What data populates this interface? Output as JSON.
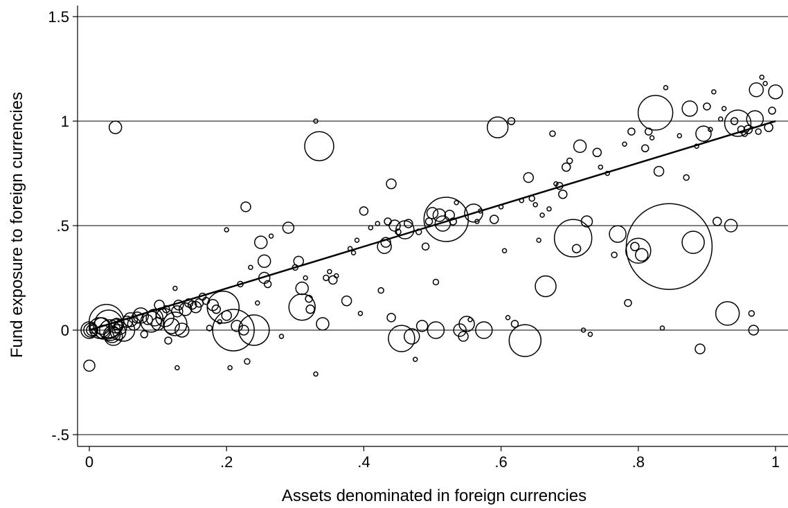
{
  "chart_data": {
    "type": "scatter",
    "title": "",
    "xlabel": "Assets denominated in foreign currencies",
    "ylabel": "Fund exposure to foreign currencies",
    "xlim": [
      -0.02,
      1.02
    ],
    "ylim": [
      -0.55,
      1.55
    ],
    "x_ticks": [
      0,
      0.2,
      0.4,
      0.6,
      0.8,
      1
    ],
    "x_tick_labels": [
      "0",
      ".2",
      ".4",
      ".6",
      ".8",
      "1"
    ],
    "y_ticks": [
      -0.5,
      0,
      0.5,
      1,
      1.5
    ],
    "y_tick_labels": [
      "-.5",
      "0",
      ".5",
      "1",
      "1.5"
    ],
    "grid": "horizontal",
    "legend": "none",
    "colors": {
      "marker": "#000000",
      "fit_line": "#000000",
      "grid": "#000000",
      "background": "#ffffff"
    },
    "fit_line": {
      "x": [
        0,
        1
      ],
      "y": [
        0,
        1
      ]
    },
    "marker_size_note": "marker area weighted by fund size (relative units)",
    "points": [
      {
        "x": 0.0,
        "y": 0.0,
        "s": 1.2
      },
      {
        "x": 0.002,
        "y": 0.0,
        "s": 1.0
      },
      {
        "x": 0.004,
        "y": 0.0,
        "s": 0.8
      },
      {
        "x": 0.006,
        "y": 0.005,
        "s": 0.6
      },
      {
        "x": 0.0,
        "y": -0.17,
        "s": 0.8
      },
      {
        "x": 0.015,
        "y": 0.01,
        "s": 1.5
      },
      {
        "x": 0.018,
        "y": 0.02,
        "s": 1.2
      },
      {
        "x": 0.02,
        "y": -0.01,
        "s": 1.0
      },
      {
        "x": 0.025,
        "y": 0.04,
        "s": 2.5
      },
      {
        "x": 0.028,
        "y": 0.03,
        "s": 2.0
      },
      {
        "x": 0.03,
        "y": 0.0,
        "s": 1.5
      },
      {
        "x": 0.033,
        "y": -0.02,
        "s": 1.2
      },
      {
        "x": 0.035,
        "y": -0.03,
        "s": 1.3
      },
      {
        "x": 0.038,
        "y": 0.02,
        "s": 1.0
      },
      {
        "x": 0.04,
        "y": 0.03,
        "s": 0.8
      },
      {
        "x": 0.042,
        "y": -0.01,
        "s": 1.1
      },
      {
        "x": 0.045,
        "y": 0.01,
        "s": 0.9
      },
      {
        "x": 0.05,
        "y": 0.0,
        "s": 1.6
      },
      {
        "x": 0.038,
        "y": 0.97,
        "s": 0.9
      },
      {
        "x": 0.055,
        "y": 0.04,
        "s": 0.8
      },
      {
        "x": 0.06,
        "y": 0.05,
        "s": 1.0
      },
      {
        "x": 0.065,
        "y": 0.03,
        "s": 0.9
      },
      {
        "x": 0.07,
        "y": 0.06,
        "s": 0.8
      },
      {
        "x": 0.075,
        "y": 0.07,
        "s": 1.1
      },
      {
        "x": 0.08,
        "y": -0.02,
        "s": 0.5
      },
      {
        "x": 0.085,
        "y": 0.05,
        "s": 0.7
      },
      {
        "x": 0.09,
        "y": 0.04,
        "s": 1.5
      },
      {
        "x": 0.095,
        "y": 0.06,
        "s": 1.2
      },
      {
        "x": 0.1,
        "y": 0.03,
        "s": 0.9
      },
      {
        "x": 0.102,
        "y": 0.12,
        "s": 0.7
      },
      {
        "x": 0.105,
        "y": 0.08,
        "s": 0.8
      },
      {
        "x": 0.11,
        "y": 0.06,
        "s": 1.3
      },
      {
        "x": 0.112,
        "y": 0.1,
        "s": 0.5
      },
      {
        "x": 0.115,
        "y": -0.05,
        "s": 0.5
      },
      {
        "x": 0.12,
        "y": 0.02,
        "s": 1.1
      },
      {
        "x": 0.125,
        "y": 0.03,
        "s": 1.7
      },
      {
        "x": 0.128,
        "y": 0.09,
        "s": 0.8
      },
      {
        "x": 0.13,
        "y": 0.12,
        "s": 0.7
      },
      {
        "x": 0.135,
        "y": 0.0,
        "s": 1.0
      },
      {
        "x": 0.14,
        "y": 0.1,
        "s": 0.9
      },
      {
        "x": 0.145,
        "y": 0.13,
        "s": 0.6
      },
      {
        "x": 0.125,
        "y": 0.2,
        "s": 0.3
      },
      {
        "x": 0.128,
        "y": -0.18,
        "s": 0.3
      },
      {
        "x": 0.15,
        "y": 0.12,
        "s": 0.6
      },
      {
        "x": 0.155,
        "y": 0.11,
        "s": 0.8
      },
      {
        "x": 0.16,
        "y": 0.13,
        "s": 0.6
      },
      {
        "x": 0.165,
        "y": 0.16,
        "s": 0.5
      },
      {
        "x": 0.17,
        "y": 0.14,
        "s": 0.5
      },
      {
        "x": 0.175,
        "y": 0.01,
        "s": 0.4
      },
      {
        "x": 0.18,
        "y": 0.12,
        "s": 0.8
      },
      {
        "x": 0.185,
        "y": 0.1,
        "s": 0.6
      },
      {
        "x": 0.19,
        "y": 0.04,
        "s": 0.3
      },
      {
        "x": 0.195,
        "y": 0.11,
        "s": 2.3
      },
      {
        "x": 0.2,
        "y": 0.07,
        "s": 0.7
      },
      {
        "x": 0.2,
        "y": 0.48,
        "s": 0.3
      },
      {
        "x": 0.205,
        "y": -0.18,
        "s": 0.3
      },
      {
        "x": 0.21,
        "y": 0.0,
        "s": 3.0
      },
      {
        "x": 0.215,
        "y": 0.02,
        "s": 0.8
      },
      {
        "x": 0.22,
        "y": 0.22,
        "s": 0.4
      },
      {
        "x": 0.225,
        "y": 0.0,
        "s": 0.7
      },
      {
        "x": 0.228,
        "y": 0.59,
        "s": 0.7
      },
      {
        "x": 0.23,
        "y": -0.15,
        "s": 0.4
      },
      {
        "x": 0.235,
        "y": 0.3,
        "s": 0.3
      },
      {
        "x": 0.24,
        "y": 0.0,
        "s": 2.2
      },
      {
        "x": 0.245,
        "y": 0.13,
        "s": 0.3
      },
      {
        "x": 0.25,
        "y": 0.42,
        "s": 0.9
      },
      {
        "x": 0.255,
        "y": 0.33,
        "s": 0.9
      },
      {
        "x": 0.255,
        "y": 0.25,
        "s": 0.8
      },
      {
        "x": 0.26,
        "y": 0.22,
        "s": 0.5
      },
      {
        "x": 0.265,
        "y": 0.45,
        "s": 0.3
      },
      {
        "x": 0.28,
        "y": -0.03,
        "s": 0.3
      },
      {
        "x": 0.29,
        "y": 0.49,
        "s": 0.8
      },
      {
        "x": 0.3,
        "y": 0.3,
        "s": 0.4
      },
      {
        "x": 0.305,
        "y": 0.33,
        "s": 0.7
      },
      {
        "x": 0.31,
        "y": 0.2,
        "s": 0.9
      },
      {
        "x": 0.31,
        "y": 0.11,
        "s": 1.9
      },
      {
        "x": 0.315,
        "y": 0.25,
        "s": 0.3
      },
      {
        "x": 0.32,
        "y": 0.15,
        "s": 0.5
      },
      {
        "x": 0.322,
        "y": 0.1,
        "s": 0.6
      },
      {
        "x": 0.33,
        "y": 1.0,
        "s": 0.3
      },
      {
        "x": 0.33,
        "y": -0.21,
        "s": 0.3
      },
      {
        "x": 0.335,
        "y": 0.88,
        "s": 2.1
      },
      {
        "x": 0.34,
        "y": 0.03,
        "s": 0.9
      },
      {
        "x": 0.345,
        "y": 0.25,
        "s": 0.4
      },
      {
        "x": 0.35,
        "y": 0.28,
        "s": 0.3
      },
      {
        "x": 0.355,
        "y": 0.24,
        "s": 0.6
      },
      {
        "x": 0.36,
        "y": 0.26,
        "s": 0.3
      },
      {
        "x": 0.375,
        "y": 0.14,
        "s": 0.7
      },
      {
        "x": 0.38,
        "y": 0.39,
        "s": 0.3
      },
      {
        "x": 0.385,
        "y": 0.37,
        "s": 0.3
      },
      {
        "x": 0.39,
        "y": 0.43,
        "s": 0.3
      },
      {
        "x": 0.395,
        "y": 0.08,
        "s": 0.3
      },
      {
        "x": 0.4,
        "y": 0.57,
        "s": 0.6
      },
      {
        "x": 0.41,
        "y": 0.49,
        "s": 0.3
      },
      {
        "x": 0.42,
        "y": 0.51,
        "s": 0.3
      },
      {
        "x": 0.425,
        "y": 0.19,
        "s": 0.4
      },
      {
        "x": 0.43,
        "y": 0.4,
        "s": 1.0
      },
      {
        "x": 0.432,
        "y": 0.42,
        "s": 0.7
      },
      {
        "x": 0.435,
        "y": 0.52,
        "s": 0.5
      },
      {
        "x": 0.44,
        "y": 0.7,
        "s": 0.7
      },
      {
        "x": 0.44,
        "y": 0.06,
        "s": 0.6
      },
      {
        "x": 0.445,
        "y": 0.5,
        "s": 0.8
      },
      {
        "x": 0.45,
        "y": 0.47,
        "s": 0.4
      },
      {
        "x": 0.455,
        "y": -0.04,
        "s": 1.9
      },
      {
        "x": 0.46,
        "y": 0.48,
        "s": 1.3
      },
      {
        "x": 0.465,
        "y": 0.51,
        "s": 0.6
      },
      {
        "x": 0.47,
        "y": -0.03,
        "s": 1.1
      },
      {
        "x": 0.475,
        "y": -0.14,
        "s": 0.3
      },
      {
        "x": 0.48,
        "y": 0.47,
        "s": 0.4
      },
      {
        "x": 0.485,
        "y": 0.02,
        "s": 0.8
      },
      {
        "x": 0.49,
        "y": 0.4,
        "s": 0.5
      },
      {
        "x": 0.495,
        "y": 0.52,
        "s": 0.5
      },
      {
        "x": 0.5,
        "y": 0.56,
        "s": 0.8
      },
      {
        "x": 0.505,
        "y": 0.0,
        "s": 1.2
      },
      {
        "x": 0.505,
        "y": 0.23,
        "s": 0.4
      },
      {
        "x": 0.51,
        "y": 0.55,
        "s": 0.9
      },
      {
        "x": 0.515,
        "y": 0.51,
        "s": 1.1
      },
      {
        "x": 0.52,
        "y": 0.53,
        "s": 3.2
      },
      {
        "x": 0.525,
        "y": 0.55,
        "s": 0.7
      },
      {
        "x": 0.53,
        "y": 0.52,
        "s": 0.5
      },
      {
        "x": 0.535,
        "y": 0.61,
        "s": 0.3
      },
      {
        "x": 0.54,
        "y": 0.0,
        "s": 0.9
      },
      {
        "x": 0.545,
        "y": -0.03,
        "s": 0.7
      },
      {
        "x": 0.55,
        "y": 0.03,
        "s": 1.1
      },
      {
        "x": 0.555,
        "y": 0.05,
        "s": 0.3
      },
      {
        "x": 0.56,
        "y": 0.56,
        "s": 1.3
      },
      {
        "x": 0.565,
        "y": 0.52,
        "s": 0.3
      },
      {
        "x": 0.57,
        "y": 0.57,
        "s": 0.3
      },
      {
        "x": 0.575,
        "y": 0.0,
        "s": 1.2
      },
      {
        "x": 0.59,
        "y": 0.53,
        "s": 0.6
      },
      {
        "x": 0.595,
        "y": 0.97,
        "s": 1.5
      },
      {
        "x": 0.6,
        "y": 0.59,
        "s": 0.3
      },
      {
        "x": 0.605,
        "y": 0.38,
        "s": 0.3
      },
      {
        "x": 0.61,
        "y": 0.06,
        "s": 0.3
      },
      {
        "x": 0.615,
        "y": 1.0,
        "s": 0.5
      },
      {
        "x": 0.62,
        "y": 0.03,
        "s": 0.5
      },
      {
        "x": 0.63,
        "y": 0.62,
        "s": 0.3
      },
      {
        "x": 0.635,
        "y": -0.05,
        "s": 2.3
      },
      {
        "x": 0.64,
        "y": 0.73,
        "s": 0.7
      },
      {
        "x": 0.645,
        "y": 0.63,
        "s": 0.4
      },
      {
        "x": 0.65,
        "y": 0.6,
        "s": 0.3
      },
      {
        "x": 0.655,
        "y": 0.43,
        "s": 0.3
      },
      {
        "x": 0.66,
        "y": 0.55,
        "s": 0.3
      },
      {
        "x": 0.665,
        "y": 0.21,
        "s": 1.5
      },
      {
        "x": 0.67,
        "y": 0.58,
        "s": 0.3
      },
      {
        "x": 0.675,
        "y": 0.94,
        "s": 0.4
      },
      {
        "x": 0.68,
        "y": 0.7,
        "s": 0.3
      },
      {
        "x": 0.685,
        "y": 0.69,
        "s": 0.5
      },
      {
        "x": 0.69,
        "y": 0.65,
        "s": 0.6
      },
      {
        "x": 0.695,
        "y": 0.78,
        "s": 0.6
      },
      {
        "x": 0.7,
        "y": 0.81,
        "s": 0.4
      },
      {
        "x": 0.705,
        "y": 0.44,
        "s": 2.7
      },
      {
        "x": 0.71,
        "y": 0.39,
        "s": 0.6
      },
      {
        "x": 0.715,
        "y": 0.88,
        "s": 0.9
      },
      {
        "x": 0.72,
        "y": 0.0,
        "s": 0.3
      },
      {
        "x": 0.725,
        "y": 0.52,
        "s": 0.8
      },
      {
        "x": 0.73,
        "y": -0.02,
        "s": 0.3
      },
      {
        "x": 0.74,
        "y": 0.85,
        "s": 0.6
      },
      {
        "x": 0.745,
        "y": 0.78,
        "s": 0.3
      },
      {
        "x": 0.755,
        "y": 0.75,
        "s": 0.3
      },
      {
        "x": 0.765,
        "y": 0.36,
        "s": 0.4
      },
      {
        "x": 0.77,
        "y": 0.46,
        "s": 1.2
      },
      {
        "x": 0.78,
        "y": 0.89,
        "s": 0.3
      },
      {
        "x": 0.785,
        "y": 0.13,
        "s": 0.5
      },
      {
        "x": 0.79,
        "y": 0.95,
        "s": 0.5
      },
      {
        "x": 0.795,
        "y": 0.4,
        "s": 0.6
      },
      {
        "x": 0.8,
        "y": 0.38,
        "s": 1.8
      },
      {
        "x": 0.805,
        "y": 0.36,
        "s": 0.9
      },
      {
        "x": 0.81,
        "y": 0.87,
        "s": 0.5
      },
      {
        "x": 0.815,
        "y": 0.95,
        "s": 0.5
      },
      {
        "x": 0.82,
        "y": 0.92,
        "s": 0.3
      },
      {
        "x": 0.825,
        "y": 1.04,
        "s": 2.5
      },
      {
        "x": 0.83,
        "y": 0.76,
        "s": 0.7
      },
      {
        "x": 0.835,
        "y": 0.01,
        "s": 0.3
      },
      {
        "x": 0.84,
        "y": 1.16,
        "s": 0.3
      },
      {
        "x": 0.845,
        "y": 0.4,
        "s": 6.2
      },
      {
        "x": 0.86,
        "y": 0.93,
        "s": 0.3
      },
      {
        "x": 0.87,
        "y": 0.73,
        "s": 0.4
      },
      {
        "x": 0.875,
        "y": 1.06,
        "s": 1.1
      },
      {
        "x": 0.88,
        "y": 0.42,
        "s": 1.6
      },
      {
        "x": 0.885,
        "y": 0.88,
        "s": 0.3
      },
      {
        "x": 0.89,
        "y": -0.09,
        "s": 0.7
      },
      {
        "x": 0.895,
        "y": 0.94,
        "s": 1.1
      },
      {
        "x": 0.9,
        "y": 1.07,
        "s": 0.5
      },
      {
        "x": 0.905,
        "y": 0.96,
        "s": 0.3
      },
      {
        "x": 0.91,
        "y": 1.14,
        "s": 0.3
      },
      {
        "x": 0.915,
        "y": 0.52,
        "s": 0.6
      },
      {
        "x": 0.92,
        "y": 1.01,
        "s": 0.3
      },
      {
        "x": 0.925,
        "y": 1.06,
        "s": 0.3
      },
      {
        "x": 0.93,
        "y": 0.08,
        "s": 1.7
      },
      {
        "x": 0.935,
        "y": 0.5,
        "s": 0.9
      },
      {
        "x": 0.94,
        "y": 1.0,
        "s": 0.5
      },
      {
        "x": 0.945,
        "y": 0.99,
        "s": 1.9
      },
      {
        "x": 0.95,
        "y": 0.96,
        "s": 0.5
      },
      {
        "x": 0.955,
        "y": 0.94,
        "s": 0.4
      },
      {
        "x": 0.96,
        "y": 0.96,
        "s": 0.6
      },
      {
        "x": 0.965,
        "y": 0.08,
        "s": 0.4
      },
      {
        "x": 0.968,
        "y": 0.0,
        "s": 0.7
      },
      {
        "x": 0.97,
        "y": 1.01,
        "s": 1.2
      },
      {
        "x": 0.972,
        "y": 1.15,
        "s": 1.0
      },
      {
        "x": 0.975,
        "y": 0.95,
        "s": 0.4
      },
      {
        "x": 0.98,
        "y": 1.21,
        "s": 0.3
      },
      {
        "x": 0.985,
        "y": 1.18,
        "s": 0.3
      },
      {
        "x": 0.99,
        "y": 0.97,
        "s": 0.6
      },
      {
        "x": 0.995,
        "y": 1.05,
        "s": 0.5
      },
      {
        "x": 1.0,
        "y": 1.14,
        "s": 1.0
      }
    ]
  }
}
